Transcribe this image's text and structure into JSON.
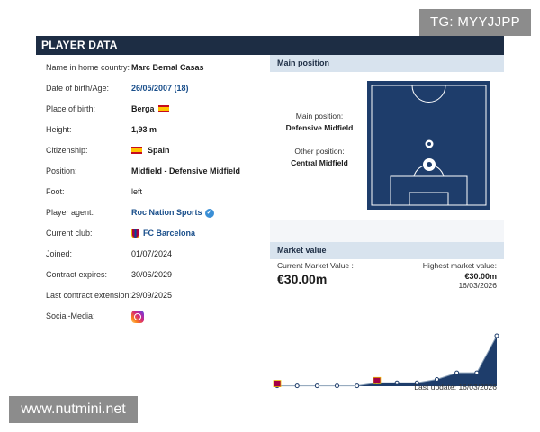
{
  "watermarks": {
    "tg": "TG: MYYJJPP",
    "site": "www.nutmini.net"
  },
  "panel": {
    "title": "PLAYER DATA"
  },
  "player": {
    "rows": [
      {
        "label": "Name in home country:",
        "value": "Marc Bernal Casas"
      },
      {
        "label": "Date of birth/Age:",
        "value": "26/05/2007 (18)"
      },
      {
        "label": "Place of birth:",
        "value": "Berga"
      },
      {
        "label": "Height:",
        "value": "1,93 m"
      },
      {
        "label": "Citizenship:",
        "value": "Spain"
      },
      {
        "label": "Position:",
        "value": "Midfield - Defensive Midfield"
      },
      {
        "label": "Foot:",
        "value": "left"
      },
      {
        "label": "Player agent:",
        "value": "Roc Nation Sports"
      },
      {
        "label": "Current club:",
        "value": "FC Barcelona"
      },
      {
        "label": "Joined:",
        "value": "01/07/2024"
      },
      {
        "label": "Contract expires:",
        "value": "30/06/2029"
      },
      {
        "label": "Last contract extension:",
        "value": "29/09/2025"
      },
      {
        "label": "Social-Media:",
        "value": ""
      }
    ]
  },
  "main_position": {
    "header": "Main position",
    "main_label": "Main position:",
    "main_value": "Defensive Midfield",
    "other_label": "Other position:",
    "other_value": "Central Midfield"
  },
  "market_value": {
    "header": "Market value",
    "current_label": "Current Market Value :",
    "current_value": "€30.00m",
    "highest_label": "Highest market value:",
    "highest_value": "€30.00m",
    "highest_date": "16/03/2026",
    "last_update": "Last update: 16/03/2026"
  },
  "colors": {
    "header_bg": "#1d2d44",
    "section_bg": "#d8e3ee",
    "pitch": "#1e3d6b",
    "link": "#1a4f8b",
    "chart_fill": "#1e3d6b"
  },
  "icons": {
    "spain_flag": "spain-flag-icon",
    "verified": "verified-check-icon",
    "club": "fc-barcelona-crest-icon",
    "instagram": "instagram-icon"
  },
  "chart_data": {
    "type": "area",
    "title": "",
    "xlabel": "",
    "ylabel": "",
    "series": [
      {
        "values": [
          0.2,
          0.2,
          0.2,
          0.2,
          0.2,
          2,
          2,
          2,
          4,
          8,
          8,
          30
        ]
      }
    ]
  }
}
